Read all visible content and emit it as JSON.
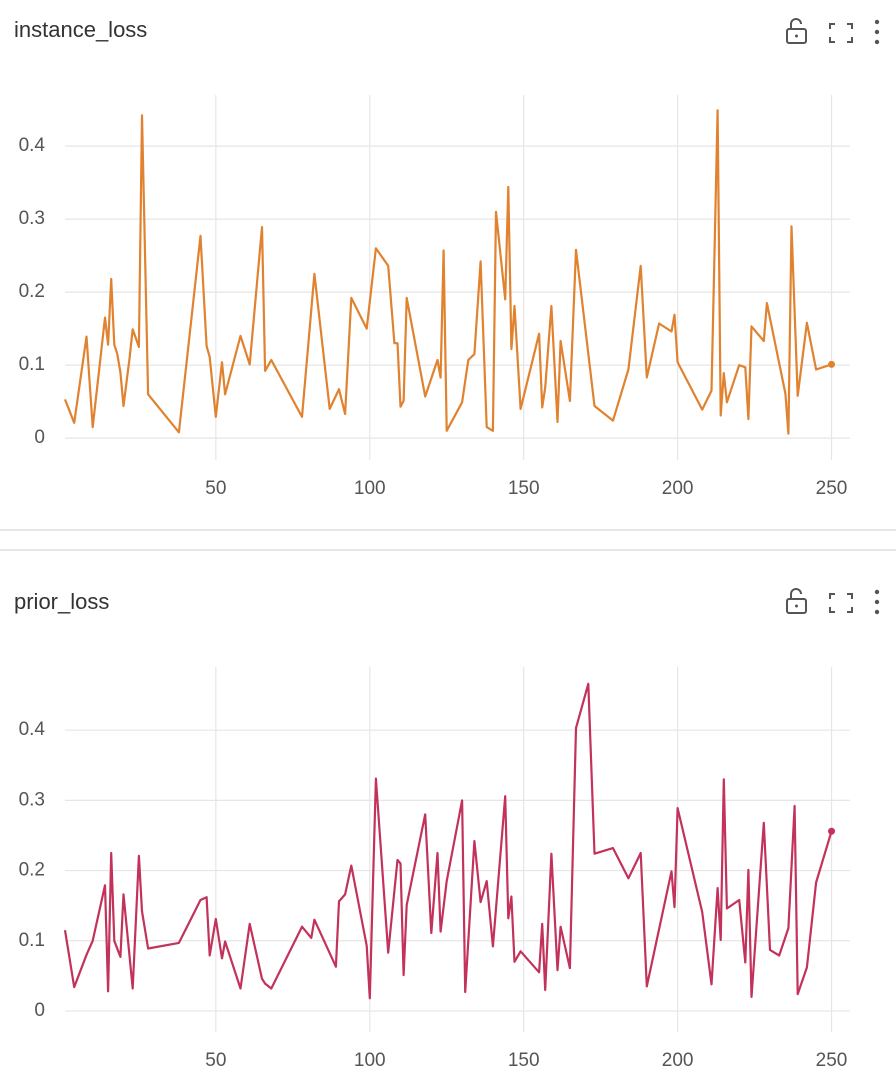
{
  "chart_data": [
    {
      "type": "line",
      "title": "instance_loss",
      "color": "#e0822f",
      "x": [
        1,
        4,
        8,
        10,
        14,
        15,
        16,
        17,
        18,
        19,
        20,
        22,
        23,
        25,
        26,
        28,
        38,
        45,
        47,
        48,
        50,
        52,
        53,
        58,
        61,
        65,
        66,
        68,
        78,
        82,
        87,
        90,
        92,
        94,
        99,
        102,
        106,
        108,
        109,
        110,
        111,
        112,
        118,
        122,
        123,
        124,
        125,
        130,
        132,
        134,
        136,
        138,
        140,
        141,
        144,
        145,
        146,
        147,
        149,
        155,
        156,
        157,
        159,
        161,
        162,
        165,
        167,
        173,
        179,
        184,
        188,
        190,
        194,
        198,
        199,
        200,
        208,
        211,
        213,
        214,
        215,
        216,
        220,
        222,
        223,
        224,
        228,
        229,
        235,
        236,
        237,
        239,
        242,
        245,
        250
      ],
      "values": [
        0.053,
        0.021,
        0.139,
        0.015,
        0.165,
        0.128,
        0.218,
        0.128,
        0.115,
        0.09,
        0.044,
        0.11,
        0.149,
        0.125,
        0.442,
        0.06,
        0.008,
        0.277,
        0.126,
        0.111,
        0.029,
        0.104,
        0.06,
        0.14,
        0.101,
        0.289,
        0.092,
        0.107,
        0.029,
        0.225,
        0.04,
        0.067,
        0.033,
        0.192,
        0.15,
        0.26,
        0.236,
        0.13,
        0.13,
        0.043,
        0.051,
        0.192,
        0.057,
        0.107,
        0.083,
        0.257,
        0.01,
        0.049,
        0.107,
        0.115,
        0.242,
        0.015,
        0.01,
        0.31,
        0.19,
        0.344,
        0.122,
        0.181,
        0.04,
        0.143,
        0.042,
        0.069,
        0.181,
        0.022,
        0.133,
        0.051,
        0.258,
        0.044,
        0.024,
        0.094,
        0.236,
        0.083,
        0.157,
        0.146,
        0.169,
        0.104,
        0.039,
        0.065,
        0.449,
        0.031,
        0.089,
        0.049,
        0.1,
        0.097,
        0.026,
        0.153,
        0.133,
        0.185,
        0.061,
        0.006,
        0.29,
        0.058,
        0.158,
        0.094,
        0.101
      ],
      "xlim": [
        1,
        256
      ],
      "xticks": [
        50,
        100,
        150,
        200,
        250
      ],
      "ylim": [
        -0.03,
        0.47
      ],
      "yticks": [
        0,
        0.1,
        0.2,
        0.3,
        0.4
      ],
      "grid": true
    },
    {
      "type": "line",
      "title": "prior_loss",
      "color": "#c2325a",
      "x": [
        1,
        4,
        8,
        10,
        14,
        15,
        16,
        17,
        19,
        20,
        23,
        25,
        26,
        28,
        38,
        45,
        47,
        48,
        50,
        52,
        53,
        58,
        61,
        65,
        66,
        68,
        78,
        81,
        82,
        89,
        90,
        92,
        94,
        99,
        100,
        102,
        106,
        109,
        110,
        111,
        112,
        118,
        120,
        122,
        123,
        125,
        130,
        131,
        134,
        136,
        138,
        140,
        144,
        145,
        146,
        147,
        149,
        155,
        156,
        157,
        159,
        161,
        162,
        165,
        167,
        171,
        173,
        179,
        184,
        188,
        190,
        198,
        199,
        200,
        208,
        211,
        213,
        214,
        215,
        216,
        220,
        222,
        223,
        224,
        228,
        230,
        233,
        236,
        238,
        239,
        242,
        245,
        250
      ],
      "values": [
        0.115,
        0.034,
        0.08,
        0.1,
        0.179,
        0.028,
        0.225,
        0.1,
        0.077,
        0.166,
        0.032,
        0.221,
        0.142,
        0.089,
        0.097,
        0.158,
        0.162,
        0.079,
        0.131,
        0.075,
        0.099,
        0.032,
        0.124,
        0.046,
        0.039,
        0.032,
        0.12,
        0.104,
        0.13,
        0.063,
        0.156,
        0.166,
        0.207,
        0.093,
        0.018,
        0.331,
        0.083,
        0.215,
        0.21,
        0.051,
        0.151,
        0.28,
        0.111,
        0.225,
        0.113,
        0.185,
        0.3,
        0.027,
        0.242,
        0.155,
        0.185,
        0.092,
        0.306,
        0.132,
        0.163,
        0.07,
        0.085,
        0.055,
        0.124,
        0.03,
        0.224,
        0.058,
        0.12,
        0.061,
        0.403,
        0.466,
        0.224,
        0.232,
        0.189,
        0.225,
        0.035,
        0.199,
        0.148,
        0.289,
        0.141,
        0.038,
        0.175,
        0.101,
        0.33,
        0.146,
        0.158,
        0.069,
        0.201,
        0.02,
        0.268,
        0.087,
        0.079,
        0.118,
        0.292,
        0.024,
        0.062,
        0.183,
        0.256
      ],
      "xlim": [
        1,
        256
      ],
      "xticks": [
        50,
        100,
        150,
        200,
        250
      ],
      "ylim": [
        -0.03,
        0.49
      ],
      "yticks": [
        0,
        0.1,
        0.2,
        0.3,
        0.4
      ],
      "grid": true
    }
  ]
}
